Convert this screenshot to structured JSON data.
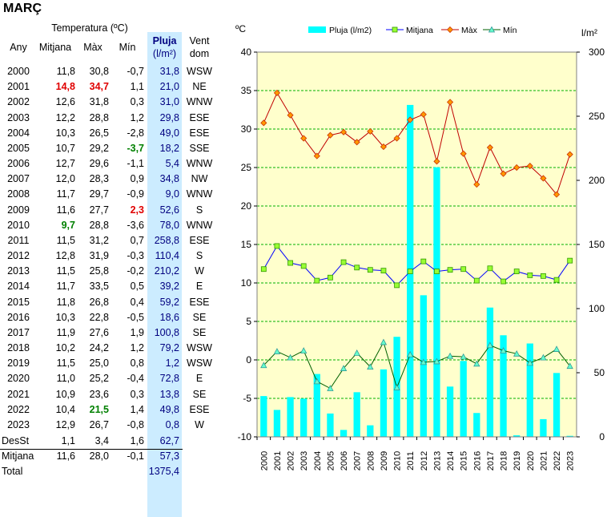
{
  "title": "MARÇ",
  "table": {
    "header_group": "Temperatura (ºC)",
    "col_any": "Any",
    "col_mitjana": "Mitjana",
    "col_max": "Màx",
    "col_min": "Mín",
    "col_pluja": "Pluja",
    "col_pluja_unit": "(l/m²)",
    "col_vent": "Vent",
    "col_vent_2": "dom",
    "rows": [
      {
        "any": "2000",
        "mitjana": "11,8",
        "max": "30,8",
        "min": "-0,7",
        "pluja": "31,8",
        "vent": "WSW"
      },
      {
        "any": "2001",
        "mitjana": "14,8",
        "max": "34,7",
        "min": "1,1",
        "pluja": "21,0",
        "vent": "NE"
      },
      {
        "any": "2002",
        "mitjana": "12,6",
        "max": "31,8",
        "min": "0,3",
        "pluja": "31,0",
        "vent": "WNW"
      },
      {
        "any": "2003",
        "mitjana": "12,2",
        "max": "28,8",
        "min": "1,2",
        "pluja": "29,8",
        "vent": "ESE"
      },
      {
        "any": "2004",
        "mitjana": "10,3",
        "max": "26,5",
        "min": "-2,8",
        "pluja": "49,0",
        "vent": "ESE"
      },
      {
        "any": "2005",
        "mitjana": "10,7",
        "max": "29,2",
        "min": "-3,7",
        "pluja": "18,2",
        "vent": "SSE"
      },
      {
        "any": "2006",
        "mitjana": "12,7",
        "max": "29,6",
        "min": "-1,1",
        "pluja": "5,4",
        "vent": "WNW"
      },
      {
        "any": "2007",
        "mitjana": "12,0",
        "max": "28,3",
        "min": "0,9",
        "pluja": "34,8",
        "vent": "NW"
      },
      {
        "any": "2008",
        "mitjana": "11,7",
        "max": "29,7",
        "min": "-0,9",
        "pluja": "9,0",
        "vent": "WNW"
      },
      {
        "any": "2009",
        "mitjana": "11,6",
        "max": "27,7",
        "min": "2,3",
        "pluja": "52,6",
        "vent": "S"
      },
      {
        "any": "2010",
        "mitjana": "9,7",
        "max": "28,8",
        "min": "-3,6",
        "pluja": "78,0",
        "vent": "WNW"
      },
      {
        "any": "2011",
        "mitjana": "11,5",
        "max": "31,2",
        "min": "0,7",
        "pluja": "258,8",
        "vent": "ESE"
      },
      {
        "any": "2012",
        "mitjana": "12,8",
        "max": "31,9",
        "min": "-0,3",
        "pluja": "110,4",
        "vent": "S"
      },
      {
        "any": "2013",
        "mitjana": "11,5",
        "max": "25,8",
        "min": "-0,2",
        "pluja": "210,2",
        "vent": "W"
      },
      {
        "any": "2014",
        "mitjana": "11,7",
        "max": "33,5",
        "min": "0,5",
        "pluja": "39,2",
        "vent": "E"
      },
      {
        "any": "2015",
        "mitjana": "11,8",
        "max": "26,8",
        "min": "0,4",
        "pluja": "59,2",
        "vent": "ESE"
      },
      {
        "any": "2016",
        "mitjana": "10,3",
        "max": "22,8",
        "min": "-0,5",
        "pluja": "18,6",
        "vent": "SE"
      },
      {
        "any": "2017",
        "mitjana": "11,9",
        "max": "27,6",
        "min": "1,9",
        "pluja": "100,8",
        "vent": "SE"
      },
      {
        "any": "2018",
        "mitjana": "10,2",
        "max": "24,2",
        "min": "1,2",
        "pluja": "79,2",
        "vent": "WSW"
      },
      {
        "any": "2019",
        "mitjana": "11,5",
        "max": "25,0",
        "min": "0,8",
        "pluja": "1,2",
        "vent": "WSW"
      },
      {
        "any": "2020",
        "mitjana": "11,0",
        "max": "25,2",
        "min": "-0,4",
        "pluja": "72,8",
        "vent": "E"
      },
      {
        "any": "2021",
        "mitjana": "10,9",
        "max": "23,6",
        "min": "0,3",
        "pluja": "13,8",
        "vent": "SE"
      },
      {
        "any": "2022",
        "mitjana": "10,4",
        "max": "21,5",
        "min": "1,4",
        "pluja": "49,8",
        "vent": "ESE"
      },
      {
        "any": "2023",
        "mitjana": "12,9",
        "max": "26,7",
        "min": "-0,8",
        "pluja": "0,8",
        "vent": "W"
      }
    ],
    "summary": [
      {
        "label": "DesSt",
        "mitjana": "1,1",
        "max": "3,4",
        "min": "1,6",
        "pluja": "62,7"
      },
      {
        "label": "Mitjana",
        "mitjana": "11,6",
        "max": "28,0",
        "min": "-0,1",
        "pluja": "57,3"
      },
      {
        "label": "Total",
        "mitjana": "",
        "max": "",
        "min": "",
        "pluja": "1375,4"
      }
    ],
    "highlights": {
      "1": {
        "mitjana": "hi",
        "max": "hi"
      },
      "5": {
        "min": "lo"
      },
      "9": {
        "min": "hi"
      },
      "10": {
        "mitjana": "lo"
      },
      "22": {
        "max": "lo"
      }
    }
  },
  "colors": {
    "plot_bg": "#ffffcc",
    "grid": "#00b000",
    "bar": "#00ffff",
    "mitjana_line": "#0000ff",
    "mitjana_marker": "#99ff33",
    "max_line": "#c00000",
    "max_marker": "#ff9900",
    "min_line": "#006000",
    "min_marker": "#66ffcc",
    "pluja_col_bg": "#ccecff"
  },
  "chart_data": {
    "type": "bar",
    "unit_left": "ºC",
    "unit_right": "l/m²",
    "x": [
      "2000",
      "2001",
      "2002",
      "2003",
      "2004",
      "2005",
      "2006",
      "2007",
      "2008",
      "2009",
      "2010",
      "2011",
      "2012",
      "2013",
      "2014",
      "2015",
      "2016",
      "2017",
      "2018",
      "2019",
      "2020",
      "2021",
      "2022",
      "2023"
    ],
    "ylim_left": [
      -10,
      40
    ],
    "yticks_left": [
      -10,
      -5,
      0,
      5,
      10,
      15,
      20,
      25,
      30,
      35,
      40
    ],
    "ylim_right": [
      0,
      300
    ],
    "yticks_right": [
      0,
      50,
      100,
      150,
      200,
      250,
      300
    ],
    "grid": true,
    "legend_position": "top",
    "series": [
      {
        "name": "Pluja (l/m2)",
        "type": "bar",
        "axis": "right",
        "values": [
          31.8,
          21.0,
          31.0,
          29.8,
          49.0,
          18.2,
          5.4,
          34.8,
          9.0,
          52.6,
          78.0,
          258.8,
          110.4,
          210.2,
          39.2,
          59.2,
          18.6,
          100.8,
          79.2,
          1.2,
          72.8,
          13.8,
          49.8,
          0.8
        ]
      },
      {
        "name": "Mitjana",
        "type": "line",
        "axis": "left",
        "values": [
          11.8,
          14.8,
          12.6,
          12.2,
          10.3,
          10.7,
          12.7,
          12.0,
          11.7,
          11.6,
          9.7,
          11.5,
          12.8,
          11.5,
          11.7,
          11.8,
          10.3,
          11.9,
          10.2,
          11.5,
          11.0,
          10.9,
          10.4,
          12.9
        ]
      },
      {
        "name": "Màx",
        "type": "line",
        "axis": "left",
        "values": [
          30.8,
          34.7,
          31.8,
          28.8,
          26.5,
          29.2,
          29.6,
          28.3,
          29.7,
          27.7,
          28.8,
          31.2,
          31.9,
          25.8,
          33.5,
          26.8,
          22.8,
          27.6,
          24.2,
          25.0,
          25.2,
          23.6,
          21.5,
          26.7
        ]
      },
      {
        "name": "Mín",
        "type": "line",
        "axis": "left",
        "values": [
          -0.7,
          1.1,
          0.3,
          1.2,
          -2.8,
          -3.7,
          -1.1,
          0.9,
          -0.9,
          2.3,
          -3.6,
          0.7,
          -0.3,
          -0.2,
          0.5,
          0.4,
          -0.5,
          1.9,
          1.2,
          0.8,
          -0.4,
          0.3,
          1.4,
          -0.8
        ]
      }
    ]
  }
}
